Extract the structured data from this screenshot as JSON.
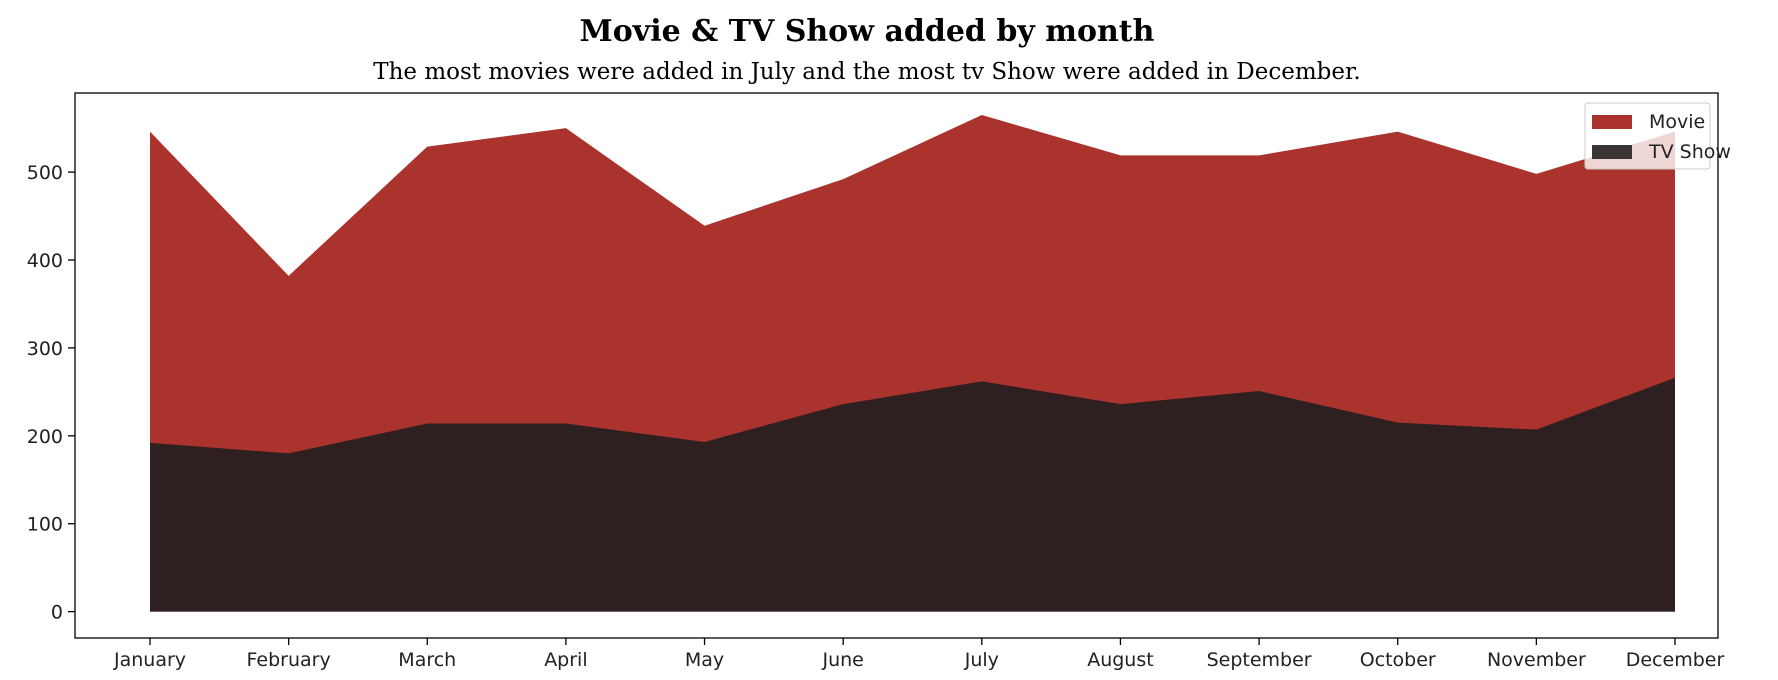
{
  "chart_data": {
    "type": "area",
    "stacked": false,
    "title": "Movie & TV Show added by month",
    "subtitle": "The most movies were added in July and the most tv Show were added in December.",
    "xlabel": "",
    "ylabel": "",
    "categories": [
      "January",
      "February",
      "March",
      "April",
      "May",
      "June",
      "July",
      "August",
      "September",
      "October",
      "November",
      "December"
    ],
    "ylim": [
      -30,
      590
    ],
    "yticks": [
      0,
      100,
      200,
      300,
      400,
      500
    ],
    "grid": false,
    "legend_position": "top-right",
    "series": [
      {
        "name": "Movie",
        "color": "#aa332d",
        "values": [
          546,
          382,
          529,
          550,
          439,
          492,
          565,
          519,
          519,
          546,
          498,
          546
        ]
      },
      {
        "name": "TV Show",
        "color": "#2e1f20",
        "values": [
          192,
          180,
          214,
          214,
          193,
          236,
          262,
          236,
          251,
          215,
          207,
          266
        ]
      }
    ]
  }
}
